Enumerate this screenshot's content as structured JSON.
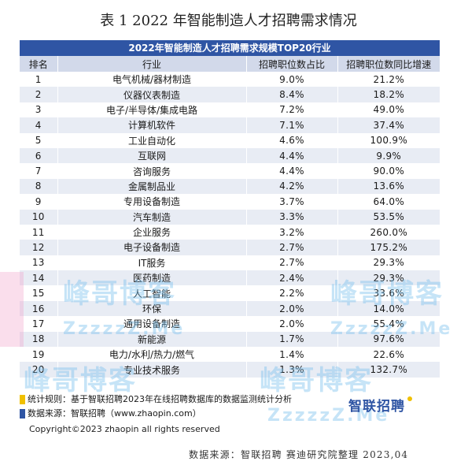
{
  "doc_title": "表 1 2022 年智能制造人才招聘需求情况",
  "table": {
    "banner": "2022年智能制造人才招聘需求规模TOP20行业",
    "headers": [
      "排名",
      "行业",
      "招聘职位数占比",
      "招聘职位数同比增速"
    ],
    "rows": [
      [
        "1",
        "电气机械/器材制造",
        "9.0%",
        "21.2%"
      ],
      [
        "2",
        "仪器仪表制造",
        "8.4%",
        "18.2%"
      ],
      [
        "3",
        "电子/半导体/集成电路",
        "7.2%",
        "49.0%"
      ],
      [
        "4",
        "计算机软件",
        "7.1%",
        "37.4%"
      ],
      [
        "5",
        "工业自动化",
        "4.6%",
        "100.9%"
      ],
      [
        "6",
        "互联网",
        "4.4%",
        "9.9%"
      ],
      [
        "7",
        "咨询服务",
        "4.4%",
        "90.0%"
      ],
      [
        "8",
        "金属制品业",
        "4.2%",
        "13.6%"
      ],
      [
        "9",
        "专用设备制造",
        "3.7%",
        "64.0%"
      ],
      [
        "10",
        "汽车制造",
        "3.3%",
        "53.5%"
      ],
      [
        "11",
        "企业服务",
        "3.2%",
        "260.0%"
      ],
      [
        "12",
        "电子设备制造",
        "2.7%",
        "175.2%"
      ],
      [
        "13",
        "IT服务",
        "2.7%",
        "29.3%"
      ],
      [
        "14",
        "医药制造",
        "2.4%",
        "29.3%"
      ],
      [
        "15",
        "人工智能",
        "2.2%",
        "33.6%"
      ],
      [
        "16",
        "环保",
        "2.0%",
        "14.0%"
      ],
      [
        "17",
        "通用设备制造",
        "2.0%",
        "55.4%"
      ],
      [
        "18",
        "新能源",
        "1.7%",
        "97.6%"
      ],
      [
        "19",
        "电力/水利/热力/燃气",
        "1.4%",
        "22.6%"
      ],
      [
        "20",
        "专业技术服务",
        "1.3%",
        "132.7%"
      ]
    ]
  },
  "notes": {
    "rule": "统计规则：基于智联招聘2023年在线招聘数据库的数据监测统计分析",
    "source": "数据来源：智联招聘（www.zhaopin.com）",
    "copyright": "Copyright©2023 zhaopin all rights reserved"
  },
  "brand": {
    "name": "智联招聘"
  },
  "footer_source": "数据来源：智联招聘 赛迪研究院整理 2023,04",
  "watermarks": {
    "brand_text": "峰哥博客",
    "url_text": "ZzzzzZ.Me"
  },
  "colors": {
    "banner": "#2f55a4",
    "header_bg": "#d2d9ea",
    "row_alt": "#e8ecf4",
    "note_yellow": "#f0c000",
    "note_blue": "#2f55a4",
    "watermark": "#78bee0"
  }
}
